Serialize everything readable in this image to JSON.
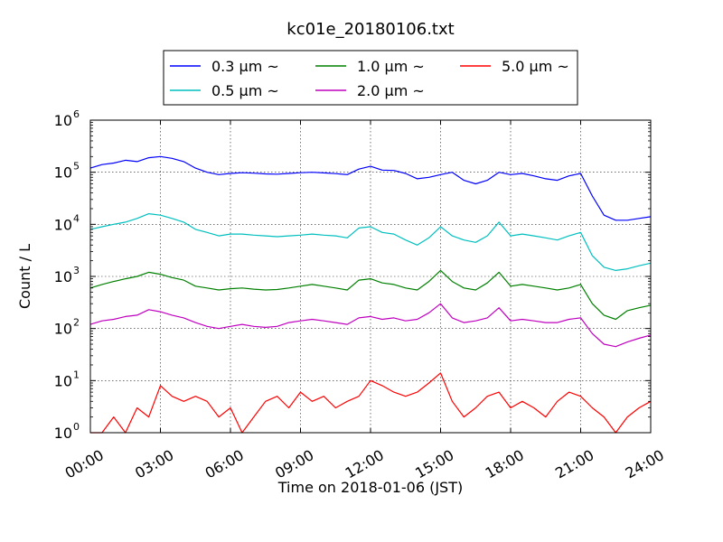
{
  "chart_data": {
    "type": "line",
    "title": "kc01e_20180106.txt",
    "xlabel": "Time on 2018-01-06 (JST)",
    "ylabel": "Count / L",
    "yscale": "log",
    "xlim_hours": [
      0,
      24
    ],
    "ylim": [
      1,
      1000000
    ],
    "grid": true,
    "legend_position": "top-center",
    "x_ticks": [
      "00:00",
      "03:00",
      "06:00",
      "09:00",
      "12:00",
      "15:00",
      "18:00",
      "21:00",
      "24:00"
    ],
    "y_ticks": [
      {
        "base": "10",
        "exp": "0"
      },
      {
        "base": "10",
        "exp": "1"
      },
      {
        "base": "10",
        "exp": "2"
      },
      {
        "base": "10",
        "exp": "3"
      },
      {
        "base": "10",
        "exp": "4"
      },
      {
        "base": "10",
        "exp": "5"
      },
      {
        "base": "10",
        "exp": "6"
      }
    ],
    "series": [
      {
        "name": "0.3 μm ~",
        "color": "#0000ff",
        "x": [
          0,
          0.5,
          1,
          1.5,
          2,
          2.5,
          3,
          3.5,
          4,
          4.5,
          5,
          5.5,
          6,
          6.5,
          7,
          7.5,
          8,
          8.5,
          9,
          9.5,
          10,
          10.5,
          11,
          11.5,
          12,
          12.5,
          13,
          13.5,
          14,
          14.5,
          15,
          15.5,
          16,
          16.5,
          17,
          17.5,
          18,
          18.5,
          19,
          19.5,
          20,
          20.5,
          21,
          21.5,
          22,
          22.5,
          23,
          23.5,
          24
        ],
        "y": [
          120000,
          140000,
          150000,
          170000,
          160000,
          190000,
          200000,
          185000,
          160000,
          120000,
          100000,
          90000,
          95000,
          98000,
          96000,
          93000,
          92000,
          95000,
          98000,
          100000,
          97000,
          94000,
          90000,
          115000,
          130000,
          110000,
          108000,
          95000,
          75000,
          80000,
          90000,
          100000,
          70000,
          60000,
          70000,
          100000,
          90000,
          95000,
          85000,
          75000,
          70000,
          85000,
          95000,
          35000,
          15000,
          12000,
          12000,
          13000,
          14000
        ]
      },
      {
        "name": "0.5 μm ~",
        "color": "#00bfbf",
        "x": [
          0,
          0.5,
          1,
          1.5,
          2,
          2.5,
          3,
          3.5,
          4,
          4.5,
          5,
          5.5,
          6,
          6.5,
          7,
          7.5,
          8,
          8.5,
          9,
          9.5,
          10,
          10.5,
          11,
          11.5,
          12,
          12.5,
          13,
          13.5,
          14,
          14.5,
          15,
          15.5,
          16,
          16.5,
          17,
          17.5,
          18,
          18.5,
          19,
          19.5,
          20,
          20.5,
          21,
          21.5,
          22,
          22.5,
          23,
          23.5,
          24
        ],
        "y": [
          8000,
          9000,
          10000,
          11000,
          13000,
          16000,
          15000,
          13000,
          11000,
          8000,
          7000,
          6000,
          6500,
          6500,
          6200,
          6000,
          5800,
          6000,
          6200,
          6500,
          6200,
          6000,
          5500,
          8500,
          9000,
          7000,
          6500,
          5000,
          4000,
          5500,
          9000,
          6000,
          5000,
          4500,
          6000,
          11000,
          6000,
          6500,
          6000,
          5500,
          5000,
          6000,
          7000,
          2500,
          1500,
          1300,
          1400,
          1600,
          1800
        ]
      },
      {
        "name": "1.0 μm ~",
        "color": "#008000",
        "x": [
          0,
          0.5,
          1,
          1.5,
          2,
          2.5,
          3,
          3.5,
          4,
          4.5,
          5,
          5.5,
          6,
          6.5,
          7,
          7.5,
          8,
          8.5,
          9,
          9.5,
          10,
          10.5,
          11,
          11.5,
          12,
          12.5,
          13,
          13.5,
          14,
          14.5,
          15,
          15.5,
          16,
          16.5,
          17,
          17.5,
          18,
          18.5,
          19,
          19.5,
          20,
          20.5,
          21,
          21.5,
          22,
          22.5,
          23,
          23.5,
          24
        ],
        "y": [
          600,
          700,
          800,
          900,
          1000,
          1200,
          1100,
          950,
          850,
          650,
          600,
          550,
          580,
          600,
          570,
          550,
          560,
          600,
          650,
          700,
          650,
          600,
          550,
          850,
          900,
          750,
          700,
          600,
          550,
          800,
          1300,
          800,
          600,
          550,
          750,
          1200,
          650,
          700,
          650,
          600,
          550,
          600,
          700,
          300,
          180,
          150,
          220,
          250,
          280
        ]
      },
      {
        "name": "2.0 μm ~",
        "color": "#bf00bf",
        "x": [
          0,
          0.5,
          1,
          1.5,
          2,
          2.5,
          3,
          3.5,
          4,
          4.5,
          5,
          5.5,
          6,
          6.5,
          7,
          7.5,
          8,
          8.5,
          9,
          9.5,
          10,
          10.5,
          11,
          11.5,
          12,
          12.5,
          13,
          13.5,
          14,
          14.5,
          15,
          15.5,
          16,
          16.5,
          17,
          17.5,
          18,
          18.5,
          19,
          19.5,
          20,
          20.5,
          21,
          21.5,
          22,
          22.5,
          23,
          23.5,
          24
        ],
        "y": [
          120,
          140,
          150,
          170,
          180,
          230,
          210,
          180,
          160,
          130,
          110,
          100,
          110,
          120,
          110,
          105,
          110,
          130,
          140,
          150,
          140,
          130,
          120,
          160,
          170,
          150,
          160,
          140,
          150,
          200,
          300,
          160,
          130,
          140,
          160,
          250,
          140,
          150,
          140,
          130,
          130,
          150,
          160,
          80,
          50,
          45,
          55,
          65,
          75
        ]
      },
      {
        "name": "5.0 μm ~",
        "color": "#ff0000",
        "x": [
          0,
          0.5,
          1,
          1.5,
          2,
          2.5,
          3,
          3.5,
          4,
          4.5,
          5,
          5.5,
          6,
          6.5,
          7,
          7.5,
          8,
          8.5,
          9,
          9.5,
          10,
          10.5,
          11,
          11.5,
          12,
          12.5,
          13,
          13.5,
          14,
          14.5,
          15,
          15.5,
          16,
          16.5,
          17,
          17.5,
          18,
          18.5,
          19,
          19.5,
          20,
          20.5,
          21,
          21.5,
          22,
          22.5,
          23,
          23.5,
          24
        ],
        "y": [
          1,
          1,
          2,
          1,
          3,
          2,
          8,
          5,
          4,
          5,
          4,
          2,
          3,
          1,
          2,
          4,
          5,
          3,
          6,
          4,
          5,
          3,
          4,
          5,
          10,
          8,
          6,
          5,
          6,
          9,
          14,
          4,
          2,
          3,
          5,
          6,
          3,
          4,
          3,
          2,
          4,
          6,
          5,
          3,
          2,
          1,
          2,
          3,
          4
        ]
      }
    ]
  }
}
